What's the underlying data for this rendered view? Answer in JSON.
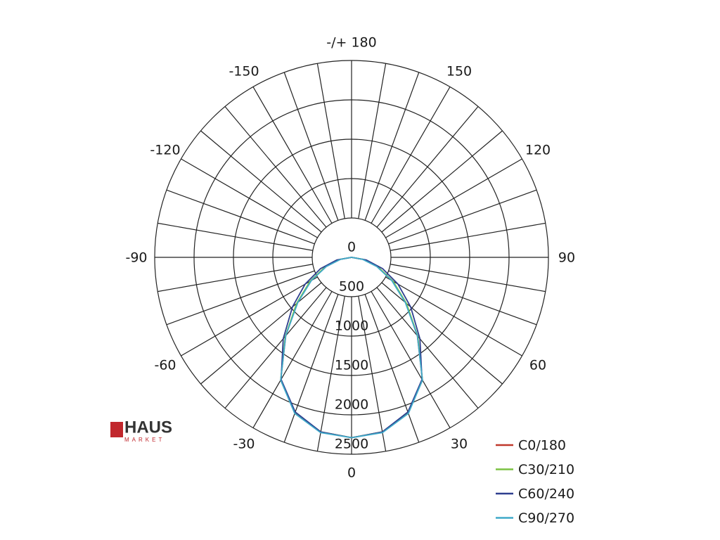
{
  "chart_data": {
    "type": "polar",
    "theta": [
      -90,
      -80,
      -70,
      -60,
      -50,
      -40,
      -30,
      -20,
      -10,
      0,
      10,
      20,
      30,
      40,
      50,
      60,
      70,
      80,
      90
    ],
    "rlim": [
      0,
      2500
    ],
    "rticks": [
      0,
      500,
      1000,
      1500,
      2000,
      2500
    ],
    "thetaticks": [
      {
        "value": 180,
        "label": "-/+ 180"
      },
      150,
      120,
      90,
      60,
      30,
      0,
      -30,
      -60,
      -90,
      -120,
      -150
    ],
    "spoke_step": 10,
    "series": [
      {
        "name": "C0/180",
        "color": "#c0392b",
        "values": [
          0,
          150,
          350,
          600,
          900,
          1300,
          1800,
          2100,
          2250,
          2290,
          2250,
          2100,
          1800,
          1300,
          900,
          600,
          350,
          150,
          0
        ]
      },
      {
        "name": "C30/210",
        "color": "#7cc242",
        "values": [
          0,
          155,
          360,
          610,
          910,
          1310,
          1800,
          2100,
          2250,
          2290,
          2250,
          2100,
          1800,
          1310,
          910,
          610,
          360,
          155,
          0
        ]
      },
      {
        "name": "C60/240",
        "color": "#2e3f8f",
        "values": [
          0,
          190,
          420,
          680,
          980,
          1350,
          1790,
          2090,
          2250,
          2290,
          2250,
          2090,
          1790,
          1350,
          980,
          680,
          420,
          190,
          0
        ]
      },
      {
        "name": "C90/270",
        "color": "#3fa9c9",
        "values": [
          0,
          140,
          340,
          590,
          890,
          1300,
          1800,
          2110,
          2260,
          2290,
          2260,
          2110,
          1800,
          1300,
          890,
          590,
          340,
          140,
          0
        ]
      }
    ]
  },
  "logo": {
    "text": "HAUS",
    "subtext": "MARKET"
  }
}
